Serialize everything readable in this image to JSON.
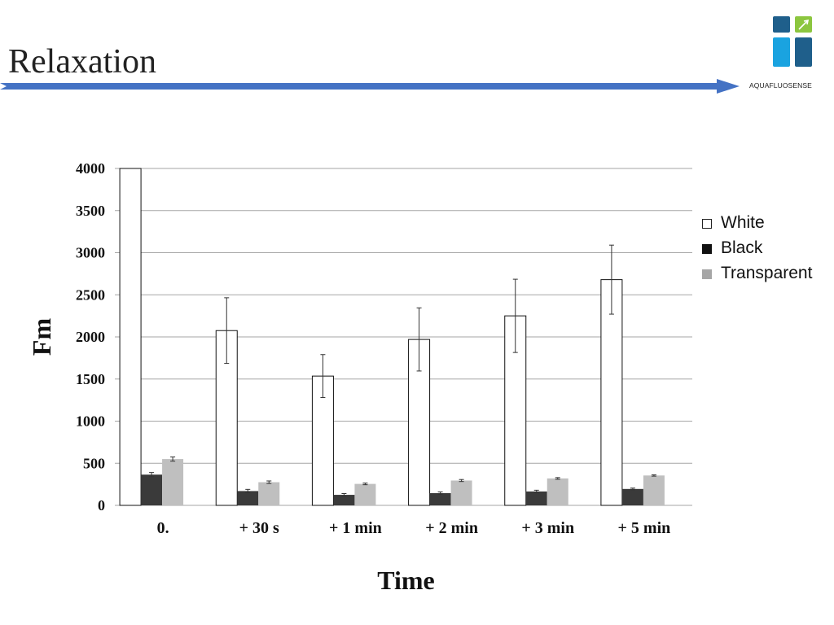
{
  "slide": {
    "title": "Relaxation",
    "brand": "AQUAFLUOSENSE"
  },
  "colors": {
    "arrow": "#4472c4",
    "logo_dark": "#1f5f8b",
    "logo_light": "#1aa3e0",
    "logo_green": "#8cc63f",
    "white_bar_fill": "#ffffff",
    "black_bar_fill": "#3a3a3a",
    "transparent_bar_fill": "#bfbfbf",
    "grid": "#a6a6a6"
  },
  "chart_data": {
    "type": "bar",
    "title": "",
    "xlabel": "Time",
    "ylabel": "Fm",
    "ylim": [
      0,
      4000
    ],
    "yticks": [
      0,
      500,
      1000,
      1500,
      2000,
      2500,
      3000,
      3500,
      4000
    ],
    "grid": true,
    "legend_position": "right",
    "categories": [
      "0.",
      "+ 30 s",
      "+ 1 min",
      "+ 2 min",
      "+ 3 min",
      "+ 5 min"
    ],
    "series": [
      {
        "name": "White",
        "color": "#ffffff",
        "values": [
          4000,
          2075,
          1535,
          1970,
          2250,
          2680
        ],
        "errors": [
          0,
          390,
          255,
          375,
          435,
          410
        ]
      },
      {
        "name": "Black",
        "color": "#3a3a3a",
        "values": [
          365,
          170,
          125,
          145,
          165,
          195
        ],
        "errors": [
          25,
          20,
          15,
          15,
          15,
          10
        ]
      },
      {
        "name": "Transparent",
        "color": "#bfbfbf",
        "values": [
          550,
          275,
          255,
          295,
          320,
          355
        ],
        "errors": [
          25,
          15,
          10,
          12,
          10,
          8
        ]
      }
    ]
  }
}
